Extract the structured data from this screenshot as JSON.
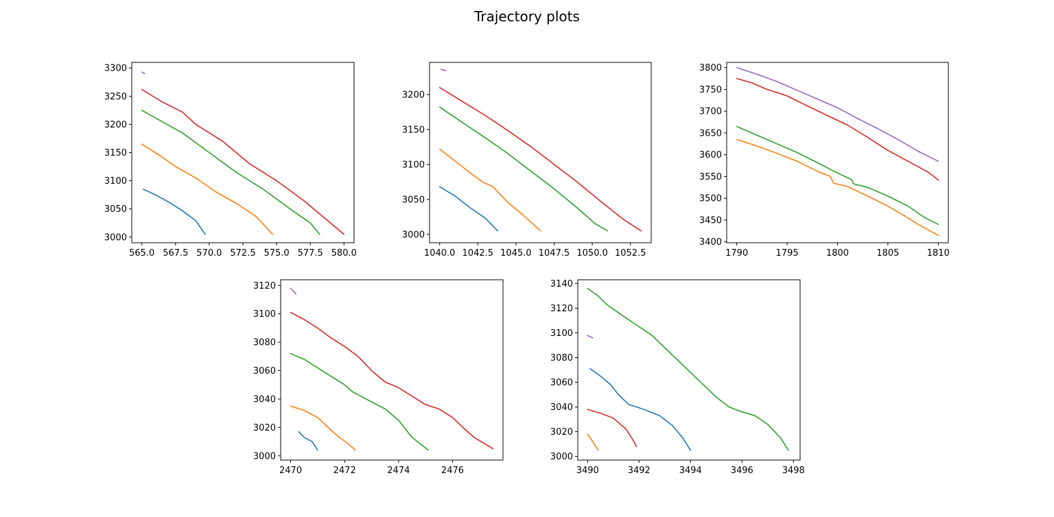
{
  "figure": {
    "title": "Trajectory plots"
  },
  "chart_data": [
    {
      "type": "line",
      "xlim": [
        564.25,
        580.75
      ],
      "ylim": [
        2990,
        3310
      ],
      "xticks": [
        565.0,
        567.5,
        570.0,
        572.5,
        575.0,
        577.5,
        580.0
      ],
      "xtick_labels": [
        "565.0",
        "567.5",
        "570.0",
        "572.5",
        "575.0",
        "577.5",
        "580.0"
      ],
      "yticks": [
        3000,
        3050,
        3100,
        3150,
        3200,
        3250,
        3300
      ],
      "ytick_labels": [
        "3000",
        "3050",
        "3100",
        "3150",
        "3200",
        "3250",
        "3300"
      ],
      "series": [
        {
          "color": "#1f77b4",
          "points": [
            [
              565.1,
              3085
            ],
            [
              566.0,
              3075
            ],
            [
              567.0,
              3062
            ],
            [
              568.0,
              3047
            ],
            [
              569.0,
              3029
            ],
            [
              569.7,
              3005
            ]
          ]
        },
        {
          "color": "#ff7f0e",
          "points": [
            [
              565.0,
              3165
            ],
            [
              566.5,
              3142
            ],
            [
              567.5,
              3125
            ],
            [
              569.0,
              3105
            ],
            [
              570.5,
              3080
            ],
            [
              572.0,
              3060
            ],
            [
              573.5,
              3036
            ],
            [
              574.7,
              3005
            ]
          ]
        },
        {
          "color": "#2ca02c",
          "points": [
            [
              565.0,
              3225
            ],
            [
              566.5,
              3205
            ],
            [
              568.0,
              3185
            ],
            [
              570.0,
              3150
            ],
            [
              572.0,
              3115
            ],
            [
              574.0,
              3085
            ],
            [
              576.0,
              3050
            ],
            [
              577.5,
              3025
            ],
            [
              578.2,
              3005
            ]
          ]
        },
        {
          "color": "#d62728",
          "points": [
            [
              565.0,
              3262
            ],
            [
              566.5,
              3240
            ],
            [
              568.0,
              3222
            ],
            [
              569.0,
              3200
            ],
            [
              571.0,
              3170
            ],
            [
              573.0,
              3130
            ],
            [
              575.0,
              3100
            ],
            [
              577.0,
              3065
            ],
            [
              578.5,
              3035
            ],
            [
              580.0,
              3005
            ]
          ]
        },
        {
          "color": "#9467bd",
          "points": [
            [
              565.0,
              3293
            ],
            [
              565.2,
              3290
            ]
          ]
        }
      ]
    },
    {
      "type": "line",
      "xlim": [
        1039.34,
        1053.86
      ],
      "ylim": [
        2988,
        3246
      ],
      "xticks": [
        1040.0,
        1042.5,
        1045.0,
        1047.5,
        1050.0,
        1052.5
      ],
      "xtick_labels": [
        "1040.0",
        "1042.5",
        "1045.0",
        "1047.5",
        "1050.0",
        "1052.5"
      ],
      "yticks": [
        3000,
        3050,
        3100,
        3150,
        3200
      ],
      "ytick_labels": [
        "3000",
        "3050",
        "3100",
        "3150",
        "3200"
      ],
      "series": [
        {
          "color": "#1f77b4",
          "points": [
            [
              1040.0,
              3068
            ],
            [
              1041.0,
              3055
            ],
            [
              1042.0,
              3038
            ],
            [
              1043.0,
              3023
            ],
            [
              1043.8,
              3005
            ]
          ]
        },
        {
          "color": "#ff7f0e",
          "points": [
            [
              1040.0,
              3122
            ],
            [
              1041.0,
              3105
            ],
            [
              1042.0,
              3088
            ],
            [
              1042.8,
              3075
            ],
            [
              1043.5,
              3068
            ],
            [
              1044.5,
              3045
            ],
            [
              1045.5,
              3027
            ],
            [
              1046.6,
              3005
            ]
          ]
        },
        {
          "color": "#2ca02c",
          "points": [
            [
              1040.0,
              3182
            ],
            [
              1041.5,
              3160
            ],
            [
              1043.0,
              3138
            ],
            [
              1044.5,
              3115
            ],
            [
              1046.0,
              3090
            ],
            [
              1047.5,
              3065
            ],
            [
              1049.0,
              3038
            ],
            [
              1050.2,
              3015
            ],
            [
              1051.0,
              3005
            ]
          ]
        },
        {
          "color": "#d62728",
          "points": [
            [
              1040.0,
              3210
            ],
            [
              1041.5,
              3190
            ],
            [
              1043.0,
              3170
            ],
            [
              1044.5,
              3148
            ],
            [
              1046.0,
              3125
            ],
            [
              1047.5,
              3100
            ],
            [
              1049.0,
              3075
            ],
            [
              1050.5,
              3048
            ],
            [
              1052.0,
              3022
            ],
            [
              1053.2,
              3005
            ]
          ]
        },
        {
          "color": "#9467bd",
          "points": [
            [
              1040.1,
              3236
            ],
            [
              1040.4,
              3234
            ]
          ]
        }
      ]
    },
    {
      "type": "line",
      "xlim": [
        1789.0,
        1811.0
      ],
      "ylim": [
        3398,
        3812
      ],
      "xticks": [
        1790,
        1795,
        1800,
        1805,
        1810
      ],
      "xtick_labels": [
        "1790",
        "1795",
        "1800",
        "1805",
        "1810"
      ],
      "yticks": [
        3400,
        3450,
        3500,
        3550,
        3600,
        3650,
        3700,
        3750,
        3800
      ],
      "ytick_labels": [
        "3400",
        "3450",
        "3500",
        "3550",
        "3600",
        "3650",
        "3700",
        "3750",
        "3800"
      ],
      "series": [
        {
          "color": "#ff7f0e",
          "points": [
            [
              1790,
              3635
            ],
            [
              1792,
              3620
            ],
            [
              1794,
              3603
            ],
            [
              1796,
              3585
            ],
            [
              1798,
              3562
            ],
            [
              1799.3,
              3550
            ],
            [
              1799.6,
              3535
            ],
            [
              1801,
              3527
            ],
            [
              1803,
              3505
            ],
            [
              1805,
              3482
            ],
            [
              1807,
              3455
            ],
            [
              1808,
              3440
            ],
            [
              1810,
              3415
            ]
          ]
        },
        {
          "color": "#2ca02c",
          "points": [
            [
              1790,
              3665
            ],
            [
              1792,
              3645
            ],
            [
              1794,
              3625
            ],
            [
              1796,
              3605
            ],
            [
              1798,
              3582
            ],
            [
              1800,
              3558
            ],
            [
              1801.4,
              3543
            ],
            [
              1801.6,
              3533
            ],
            [
              1803,
              3525
            ],
            [
              1805,
              3505
            ],
            [
              1807,
              3482
            ],
            [
              1808.5,
              3458
            ],
            [
              1810,
              3440
            ]
          ]
        },
        {
          "color": "#d62728",
          "points": [
            [
              1790,
              3775
            ],
            [
              1791.5,
              3765
            ],
            [
              1793,
              3750
            ],
            [
              1795,
              3735
            ],
            [
              1797,
              3712
            ],
            [
              1799,
              3690
            ],
            [
              1801,
              3668
            ],
            [
              1803,
              3640
            ],
            [
              1805,
              3610
            ],
            [
              1807,
              3585
            ],
            [
              1809,
              3560
            ],
            [
              1810,
              3542
            ]
          ]
        },
        {
          "color": "#9467bd",
          "points": [
            [
              1790,
              3800
            ],
            [
              1792,
              3785
            ],
            [
              1794,
              3768
            ],
            [
              1796,
              3748
            ],
            [
              1798,
              3728
            ],
            [
              1800,
              3708
            ],
            [
              1802,
              3683
            ],
            [
              1804,
              3660
            ],
            [
              1806,
              3635
            ],
            [
              1808,
              3608
            ],
            [
              1810,
              3585
            ]
          ]
        }
      ]
    },
    {
      "type": "line",
      "xlim": [
        2469.63,
        2477.87
      ],
      "ylim": [
        2997,
        3124
      ],
      "xticks": [
        2470,
        2472,
        2474,
        2476
      ],
      "xtick_labels": [
        "2470",
        "2472",
        "2474",
        "2476"
      ],
      "yticks": [
        3000,
        3020,
        3040,
        3060,
        3080,
        3100,
        3120
      ],
      "ytick_labels": [
        "3000",
        "3020",
        "3040",
        "3060",
        "3080",
        "3100",
        "3120"
      ],
      "series": [
        {
          "color": "#1f77b4",
          "points": [
            [
              2470.3,
              3017
            ],
            [
              2470.5,
              3013
            ],
            [
              2470.8,
              3010
            ],
            [
              2471.0,
              3004
            ]
          ]
        },
        {
          "color": "#ff7f0e",
          "points": [
            [
              2470.0,
              3035
            ],
            [
              2470.5,
              3032
            ],
            [
              2471.0,
              3027
            ],
            [
              2471.5,
              3018
            ],
            [
              2471.8,
              3013
            ],
            [
              2472.1,
              3009
            ],
            [
              2472.4,
              3004
            ]
          ]
        },
        {
          "color": "#2ca02c",
          "points": [
            [
              2470.0,
              3072
            ],
            [
              2470.5,
              3068
            ],
            [
              2471.0,
              3062
            ],
            [
              2471.5,
              3056
            ],
            [
              2472.0,
              3050
            ],
            [
              2472.3,
              3045
            ],
            [
              2472.8,
              3040
            ],
            [
              2473.5,
              3033
            ],
            [
              2474.0,
              3025
            ],
            [
              2474.5,
              3013
            ],
            [
              2475.1,
              3004
            ]
          ]
        },
        {
          "color": "#d62728",
          "points": [
            [
              2470.0,
              3101
            ],
            [
              2470.5,
              3096
            ],
            [
              2471.0,
              3090
            ],
            [
              2471.5,
              3083
            ],
            [
              2472.0,
              3077
            ],
            [
              2472.5,
              3070
            ],
            [
              2473.0,
              3060
            ],
            [
              2473.5,
              3052
            ],
            [
              2474.0,
              3048
            ],
            [
              2474.5,
              3042
            ],
            [
              2475.0,
              3036
            ],
            [
              2475.5,
              3033
            ],
            [
              2476.0,
              3027
            ],
            [
              2476.5,
              3018
            ],
            [
              2476.8,
              3013
            ],
            [
              2477.5,
              3005
            ]
          ]
        },
        {
          "color": "#9467bd",
          "points": [
            [
              2470.0,
              3118
            ],
            [
              2470.2,
              3114
            ]
          ]
        }
      ]
    },
    {
      "type": "line",
      "xlim": [
        3489.62,
        3498.26
      ],
      "ylim": [
        2997,
        3143
      ],
      "xticks": [
        3490,
        3492,
        3494,
        3496,
        3498
      ],
      "xtick_labels": [
        "3490",
        "3492",
        "3494",
        "3496",
        "3498"
      ],
      "yticks": [
        3000,
        3020,
        3040,
        3060,
        3080,
        3100,
        3120,
        3140
      ],
      "ytick_labels": [
        "3000",
        "3020",
        "3040",
        "3060",
        "3080",
        "3100",
        "3120",
        "3140"
      ],
      "series": [
        {
          "color": "#1f77b4",
          "points": [
            [
              3490.1,
              3071
            ],
            [
              3490.5,
              3065
            ],
            [
              3490.9,
              3058
            ],
            [
              3491.2,
              3050
            ],
            [
              3491.6,
              3042
            ],
            [
              3492.2,
              3038
            ],
            [
              3492.8,
              3033
            ],
            [
              3493.3,
              3025
            ],
            [
              3493.7,
              3015
            ],
            [
              3494.0,
              3005
            ]
          ]
        },
        {
          "color": "#ff7f0e",
          "points": [
            [
              3490.0,
              3018
            ],
            [
              3490.2,
              3012
            ],
            [
              3490.4,
              3005
            ]
          ]
        },
        {
          "color": "#2ca02c",
          "points": [
            [
              3490.0,
              3136
            ],
            [
              3490.4,
              3130
            ],
            [
              3490.8,
              3122
            ],
            [
              3491.5,
              3112
            ],
            [
              3492.0,
              3105
            ],
            [
              3492.5,
              3098
            ],
            [
              3493.0,
              3088
            ],
            [
              3493.5,
              3078
            ],
            [
              3494.0,
              3068
            ],
            [
              3494.5,
              3058
            ],
            [
              3495.0,
              3048
            ],
            [
              3495.5,
              3040
            ],
            [
              3496.0,
              3036
            ],
            [
              3496.5,
              3033
            ],
            [
              3497.0,
              3026
            ],
            [
              3497.5,
              3015
            ],
            [
              3497.8,
              3005
            ]
          ]
        },
        {
          "color": "#d62728",
          "points": [
            [
              3490.0,
              3038
            ],
            [
              3490.5,
              3035
            ],
            [
              3491.0,
              3031
            ],
            [
              3491.5,
              3022
            ],
            [
              3491.8,
              3012
            ],
            [
              3491.9,
              3008
            ]
          ]
        },
        {
          "color": "#9467bd",
          "points": [
            [
              3490.0,
              3098
            ],
            [
              3490.2,
              3096
            ]
          ]
        }
      ]
    }
  ]
}
